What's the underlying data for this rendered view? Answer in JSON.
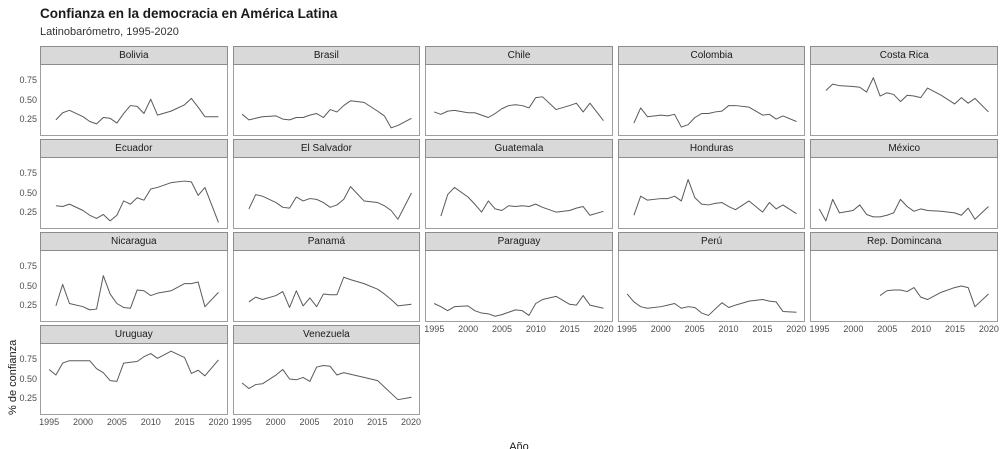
{
  "header": {
    "title": "Confianza en la democracia en América Latina",
    "subtitle": "Latinobarómetro, 1995-2020"
  },
  "chart_data": {
    "type": "line",
    "title": "Confianza en la democracia en América Latina",
    "subtitle": "Latinobarómetro, 1995-2020",
    "xlabel": "Año",
    "ylabel": "% de confianza",
    "legend": "none",
    "grid": "off",
    "ncol": 5,
    "xlim": [
      1993.8,
      2021.2
    ],
    "ylim": [
      0.06,
      0.94
    ],
    "x_ticks": [
      1995,
      2000,
      2005,
      2010,
      2015,
      2020
    ],
    "y_ticks": [
      {
        "v": 0.75,
        "label": "0.75"
      },
      {
        "v": 0.5,
        "label": "0.50"
      },
      {
        "v": 0.25,
        "label": "0.25"
      }
    ],
    "line_color": "#5a5a5a",
    "strip_fill": "#d9d9d9",
    "panel_border": "#9e9e9e",
    "series": [
      {
        "name": "Bolivia",
        "x": [
          1996,
          1997,
          1998,
          2000,
          2001,
          2002,
          2003,
          2004,
          2005,
          2006,
          2007,
          2008,
          2009,
          2010,
          2011,
          2013,
          2015,
          2016,
          2017,
          2018,
          2020
        ],
        "y": [
          0.25,
          0.34,
          0.37,
          0.29,
          0.23,
          0.2,
          0.28,
          0.27,
          0.21,
          0.33,
          0.43,
          0.42,
          0.33,
          0.51,
          0.31,
          0.36,
          0.44,
          0.52,
          0.41,
          0.29,
          0.29
        ]
      },
      {
        "name": "Brasil",
        "x": [
          1995,
          1996,
          1997,
          1998,
          2000,
          2001,
          2002,
          2003,
          2004,
          2005,
          2006,
          2007,
          2008,
          2009,
          2010,
          2011,
          2013,
          2015,
          2016,
          2017,
          2018,
          2020
        ],
        "y": [
          0.32,
          0.25,
          0.27,
          0.29,
          0.3,
          0.26,
          0.25,
          0.28,
          0.28,
          0.31,
          0.33,
          0.28,
          0.38,
          0.35,
          0.43,
          0.49,
          0.47,
          0.36,
          0.3,
          0.15,
          0.18,
          0.27
        ]
      },
      {
        "name": "Chile",
        "x": [
          1995,
          1996,
          1997,
          1998,
          2000,
          2001,
          2002,
          2003,
          2004,
          2005,
          2006,
          2007,
          2008,
          2009,
          2010,
          2011,
          2013,
          2015,
          2016,
          2017,
          2018,
          2020
        ],
        "y": [
          0.35,
          0.32,
          0.36,
          0.37,
          0.34,
          0.34,
          0.31,
          0.28,
          0.33,
          0.39,
          0.43,
          0.44,
          0.43,
          0.4,
          0.53,
          0.54,
          0.38,
          0.43,
          0.46,
          0.35,
          0.46,
          0.24
        ]
      },
      {
        "name": "Colombia",
        "x": [
          1996,
          1997,
          1998,
          2000,
          2001,
          2002,
          2003,
          2004,
          2005,
          2006,
          2007,
          2008,
          2009,
          2010,
          2011,
          2013,
          2015,
          2016,
          2017,
          2018,
          2020
        ],
        "y": [
          0.21,
          0.4,
          0.29,
          0.31,
          0.3,
          0.32,
          0.16,
          0.19,
          0.28,
          0.33,
          0.33,
          0.35,
          0.36,
          0.43,
          0.43,
          0.41,
          0.31,
          0.32,
          0.26,
          0.3,
          0.23
        ]
      },
      {
        "name": "Costa Rica",
        "x": [
          1996,
          1997,
          1998,
          2000,
          2001,
          2002,
          2003,
          2004,
          2005,
          2006,
          2007,
          2008,
          2009,
          2010,
          2011,
          2013,
          2015,
          2016,
          2017,
          2018,
          2020
        ],
        "y": [
          0.62,
          0.7,
          0.68,
          0.67,
          0.66,
          0.6,
          0.78,
          0.55,
          0.59,
          0.57,
          0.48,
          0.56,
          0.55,
          0.53,
          0.65,
          0.56,
          0.45,
          0.53,
          0.46,
          0.52,
          0.35
        ]
      },
      {
        "name": "Ecuador",
        "x": [
          1996,
          1997,
          1998,
          2000,
          2001,
          2002,
          2003,
          2004,
          2005,
          2006,
          2007,
          2008,
          2009,
          2010,
          2011,
          2013,
          2015,
          2016,
          2017,
          2018,
          2020
        ],
        "y": [
          0.34,
          0.33,
          0.36,
          0.28,
          0.22,
          0.18,
          0.23,
          0.15,
          0.22,
          0.4,
          0.36,
          0.44,
          0.41,
          0.55,
          0.57,
          0.63,
          0.65,
          0.64,
          0.47,
          0.57,
          0.13
        ]
      },
      {
        "name": "El Salvador",
        "x": [
          1996,
          1997,
          1998,
          2000,
          2001,
          2002,
          2003,
          2004,
          2005,
          2006,
          2007,
          2008,
          2009,
          2010,
          2011,
          2013,
          2015,
          2016,
          2017,
          2018,
          2020
        ],
        "y": [
          0.3,
          0.48,
          0.46,
          0.38,
          0.32,
          0.31,
          0.45,
          0.4,
          0.43,
          0.42,
          0.38,
          0.32,
          0.35,
          0.42,
          0.58,
          0.4,
          0.38,
          0.34,
          0.28,
          0.17,
          0.5
        ]
      },
      {
        "name": "Guatemala",
        "x": [
          1996,
          1997,
          1998,
          2000,
          2001,
          2002,
          2003,
          2004,
          2005,
          2006,
          2007,
          2008,
          2009,
          2010,
          2011,
          2013,
          2015,
          2016,
          2017,
          2018,
          2020
        ],
        "y": [
          0.21,
          0.48,
          0.57,
          0.45,
          0.36,
          0.26,
          0.4,
          0.3,
          0.28,
          0.34,
          0.33,
          0.34,
          0.33,
          0.36,
          0.32,
          0.26,
          0.28,
          0.31,
          0.33,
          0.22,
          0.27
        ]
      },
      {
        "name": "Honduras",
        "x": [
          1996,
          1997,
          1998,
          2000,
          2001,
          2002,
          2003,
          2004,
          2005,
          2006,
          2007,
          2008,
          2009,
          2010,
          2011,
          2013,
          2015,
          2016,
          2017,
          2018,
          2020
        ],
        "y": [
          0.22,
          0.46,
          0.41,
          0.43,
          0.43,
          0.46,
          0.4,
          0.67,
          0.44,
          0.36,
          0.35,
          0.37,
          0.38,
          0.33,
          0.29,
          0.4,
          0.26,
          0.38,
          0.3,
          0.35,
          0.24
        ]
      },
      {
        "name": "México",
        "x": [
          1995,
          1996,
          1997,
          1998,
          2000,
          2001,
          2002,
          2003,
          2004,
          2005,
          2006,
          2007,
          2008,
          2009,
          2010,
          2011,
          2013,
          2015,
          2016,
          2017,
          2018,
          2020
        ],
        "y": [
          0.3,
          0.15,
          0.42,
          0.25,
          0.28,
          0.35,
          0.23,
          0.2,
          0.2,
          0.22,
          0.25,
          0.42,
          0.33,
          0.27,
          0.3,
          0.28,
          0.27,
          0.25,
          0.22,
          0.31,
          0.17,
          0.33
        ]
      },
      {
        "name": "Nicaragua",
        "x": [
          1996,
          1997,
          1998,
          2000,
          2001,
          2002,
          2003,
          2004,
          2005,
          2006,
          2007,
          2008,
          2009,
          2010,
          2011,
          2013,
          2015,
          2016,
          2017,
          2018,
          2020
        ],
        "y": [
          0.25,
          0.52,
          0.28,
          0.24,
          0.2,
          0.21,
          0.63,
          0.4,
          0.28,
          0.23,
          0.22,
          0.45,
          0.44,
          0.38,
          0.41,
          0.44,
          0.53,
          0.53,
          0.55,
          0.24,
          0.42
        ]
      },
      {
        "name": "Panamá",
        "x": [
          1996,
          1997,
          1998,
          2000,
          2001,
          2002,
          2003,
          2004,
          2005,
          2006,
          2007,
          2008,
          2009,
          2010,
          2011,
          2013,
          2015,
          2016,
          2017,
          2018,
          2020
        ],
        "y": [
          0.3,
          0.36,
          0.33,
          0.38,
          0.43,
          0.23,
          0.44,
          0.25,
          0.35,
          0.24,
          0.4,
          0.39,
          0.39,
          0.61,
          0.58,
          0.53,
          0.46,
          0.4,
          0.33,
          0.25,
          0.27
        ]
      },
      {
        "name": "Paraguay",
        "x": [
          1995,
          1996,
          1997,
          1998,
          2000,
          2001,
          2002,
          2003,
          2004,
          2005,
          2006,
          2007,
          2008,
          2009,
          2010,
          2011,
          2013,
          2015,
          2016,
          2017,
          2018,
          2020
        ],
        "y": [
          0.28,
          0.24,
          0.19,
          0.24,
          0.25,
          0.19,
          0.16,
          0.15,
          0.12,
          0.14,
          0.17,
          0.2,
          0.19,
          0.13,
          0.28,
          0.33,
          0.37,
          0.27,
          0.26,
          0.38,
          0.26,
          0.22
        ]
      },
      {
        "name": "Perú",
        "x": [
          1995,
          1996,
          1997,
          1998,
          2000,
          2001,
          2002,
          2003,
          2004,
          2005,
          2006,
          2007,
          2008,
          2009,
          2010,
          2011,
          2013,
          2015,
          2016,
          2017,
          2018,
          2020
        ],
        "y": [
          0.4,
          0.3,
          0.24,
          0.22,
          0.24,
          0.26,
          0.28,
          0.22,
          0.24,
          0.23,
          0.16,
          0.13,
          0.21,
          0.29,
          0.23,
          0.26,
          0.31,
          0.33,
          0.31,
          0.3,
          0.18,
          0.17
        ]
      },
      {
        "name": "Rep. Domincana",
        "x": [
          2004,
          2005,
          2006,
          2007,
          2008,
          2009,
          2010,
          2011,
          2013,
          2015,
          2016,
          2017,
          2018,
          2020
        ],
        "y": [
          0.38,
          0.44,
          0.45,
          0.45,
          0.43,
          0.48,
          0.36,
          0.33,
          0.42,
          0.48,
          0.5,
          0.48,
          0.24,
          0.4
        ]
      },
      {
        "name": "Uruguay",
        "x": [
          1995,
          1996,
          1997,
          1998,
          2000,
          2001,
          2002,
          2003,
          2004,
          2005,
          2006,
          2007,
          2008,
          2009,
          2010,
          2011,
          2013,
          2015,
          2016,
          2017,
          2018,
          2020
        ],
        "y": [
          0.62,
          0.55,
          0.7,
          0.73,
          0.73,
          0.73,
          0.63,
          0.58,
          0.48,
          0.47,
          0.7,
          0.71,
          0.72,
          0.78,
          0.82,
          0.76,
          0.85,
          0.77,
          0.57,
          0.61,
          0.54,
          0.74
        ]
      },
      {
        "name": "Venezuela",
        "x": [
          1995,
          1996,
          1997,
          1998,
          2000,
          2001,
          2002,
          2003,
          2004,
          2005,
          2006,
          2007,
          2008,
          2009,
          2010,
          2011,
          2013,
          2015,
          2016,
          2017,
          2018,
          2020
        ],
        "y": [
          0.45,
          0.38,
          0.43,
          0.44,
          0.55,
          0.62,
          0.5,
          0.49,
          0.52,
          0.47,
          0.65,
          0.67,
          0.66,
          0.55,
          0.58,
          0.56,
          0.52,
          0.48,
          0.4,
          0.32,
          0.24,
          0.27
        ]
      }
    ]
  }
}
